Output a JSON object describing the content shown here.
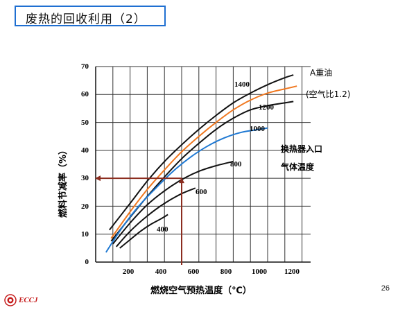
{
  "slide": {
    "title": "废热的回收利用（2）",
    "page_number": "26",
    "logo_text": "ECCJ"
  },
  "colors": {
    "title_border": "#1f6fd1",
    "black_curve": "#111111",
    "orange_curve": "#f07820",
    "blue_curve": "#1e78d2",
    "reference_line": "#8b2d1f",
    "grid": "#333333"
  },
  "chart_data": {
    "type": "line",
    "xlabel": "燃烧空气预热温度（℃）",
    "ylabel": "燃料节减率（%）",
    "xlim": [
      0,
      1250
    ],
    "ylim": [
      0,
      70
    ],
    "x_ticks": [
      200,
      400,
      600,
      800,
      1000,
      1200
    ],
    "y_ticks": [
      0,
      10,
      20,
      30,
      40,
      50,
      60,
      70
    ],
    "grid": true,
    "annotations": {
      "fuel": "A重油",
      "air_ratio": "(空气比1.2)",
      "exchanger_line1": "换热器入口",
      "exchanger_line2": "气体温度"
    },
    "series": [
      {
        "name": "1400",
        "color": "black",
        "x": [
          80,
          200,
          300,
          400,
          500,
          600,
          700,
          800,
          900,
          1000,
          1100,
          1150
        ],
        "y": [
          11.5,
          21,
          29,
          36,
          42,
          47.5,
          52.5,
          57,
          60.5,
          63.5,
          66,
          67
        ]
      },
      {
        "name": "orange",
        "color": "orange",
        "x": [
          90,
          200,
          300,
          400,
          500,
          600,
          700,
          800,
          900,
          1000,
          1100,
          1170
        ],
        "y": [
          8.5,
          18,
          26,
          33,
          39.5,
          45,
          50,
          54.5,
          58,
          60.5,
          62,
          63
        ]
      },
      {
        "name": "1200",
        "color": "black",
        "x": [
          90,
          200,
          300,
          400,
          500,
          600,
          700,
          800,
          900,
          1000,
          1100,
          1150
        ],
        "y": [
          7.5,
          16,
          23.5,
          30.5,
          37,
          42.5,
          47.5,
          51.5,
          54.5,
          56,
          57,
          57.5
        ]
      },
      {
        "name": "1000",
        "color": "blue",
        "x": [
          60,
          150,
          250,
          350,
          450,
          550,
          650,
          750,
          850,
          950,
          1000
        ],
        "y": [
          3.5,
          12,
          20,
          26.5,
          32.5,
          37.5,
          41.5,
          44.5,
          46.5,
          47.5,
          48
        ]
      },
      {
        "name": "800",
        "color": "black",
        "x": [
          100,
          200,
          300,
          400,
          500,
          600,
          700,
          800
        ],
        "y": [
          6.5,
          14,
          20.5,
          25.5,
          29.5,
          32.5,
          34.5,
          36
        ]
      },
      {
        "name": "600",
        "color": "black",
        "x": [
          120,
          200,
          300,
          400,
          500,
          580
        ],
        "y": [
          5.5,
          11,
          16.5,
          21,
          24.5,
          26.5
        ]
      },
      {
        "name": "400",
        "color": "black",
        "x": [
          140,
          200,
          260,
          320,
          380,
          420
        ],
        "y": [
          5,
          8,
          11,
          13.5,
          15.5,
          17
        ]
      }
    ],
    "curve_labels": [
      "1400",
      "1200",
      "1000",
      "800",
      "600",
      "400"
    ],
    "reference": {
      "x": 500,
      "y": 30
    }
  }
}
